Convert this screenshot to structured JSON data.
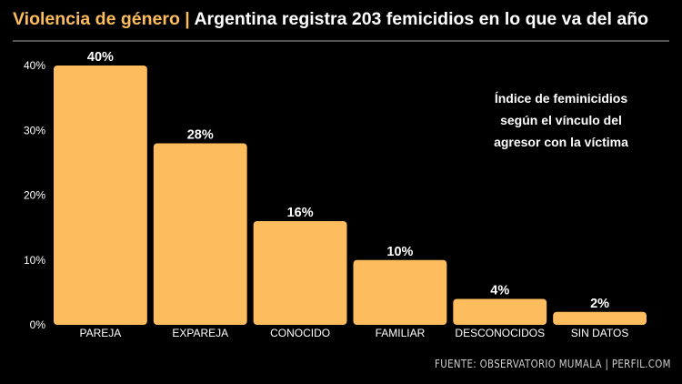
{
  "header": {
    "kicker": "Violencia de género",
    "separator": "|",
    "headline": "Argentina registra 203 femicidios en lo que va del año"
  },
  "annotation": {
    "lines": [
      "Índice de feminicidios",
      "según el vínculo del",
      "agresor con la víctima"
    ]
  },
  "source": "FUENTE: OBSERVATORIO MUMALA | PERFIL.COM",
  "colors": {
    "bar": "#FDBD5E",
    "accent": "#FDBD5E",
    "background": "#000000"
  },
  "chart_data": {
    "type": "bar",
    "categories": [
      "PAREJA",
      "EXPAREJA",
      "CONOCIDO",
      "FAMILIAR",
      "DESCONOCIDOS",
      "SIN DATOS"
    ],
    "values": [
      40,
      28,
      16,
      10,
      4,
      2
    ],
    "value_labels": [
      "40%",
      "28%",
      "16%",
      "10%",
      "4%",
      "2%"
    ],
    "ylim": [
      0,
      40
    ],
    "yticks": [
      0,
      10,
      20,
      30,
      40
    ],
    "ytick_labels": [
      "0%",
      "10%",
      "20%",
      "30%",
      "40%"
    ],
    "grid": false
  }
}
